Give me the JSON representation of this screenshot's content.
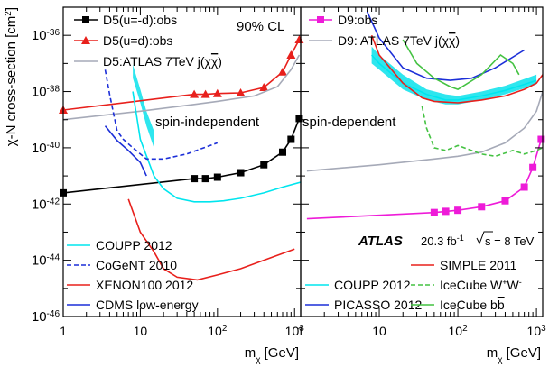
{
  "chart_data": [
    {
      "panel": "left",
      "type": "line",
      "log_x": true,
      "log_y": true,
      "xlim": [
        1,
        1200
      ],
      "ylim": [
        1e-46,
        1e-35
      ],
      "xlabel": "m",
      "xlabel_sub": "χ",
      "xlabel_unit": " [GeV]",
      "ylabel": "χ-N cross-section [cm",
      "ylabel_sup": "2",
      "ylabel_end": "]",
      "x_tick_labels": [
        "1",
        "10",
        "10",
        "10"
      ],
      "x_tick_sups": [
        "",
        "",
        "2",
        "3"
      ],
      "y_tick_labels": [
        "10",
        "10",
        "10",
        "10",
        "10",
        "10"
      ],
      "y_tick_sups": [
        "-46",
        "-44",
        "-42",
        "-40",
        "-38",
        "-36"
      ],
      "cl_label": "90% CL",
      "annotation": "spin-independent",
      "series": [
        {
          "name": "D5(u=-d):obs",
          "color": "#000000",
          "marker": "square",
          "dash": "",
          "x": [
            1,
            50,
            70,
            100,
            200,
            400,
            700,
            900,
            1150
          ],
          "y": [
            2.5e-42,
            8e-42,
            8e-42,
            9e-42,
            1.3e-41,
            2.5e-41,
            7e-41,
            2e-40,
            1.1e-39
          ]
        },
        {
          "name": "D5(u=d):obs",
          "color": "#e8201c",
          "marker": "triangle",
          "dash": "",
          "x": [
            1,
            50,
            70,
            100,
            200,
            400,
            700,
            900,
            1150
          ],
          "y": [
            2.2e-39,
            8e-39,
            8e-39,
            8.5e-39,
            9e-39,
            1.4e-38,
            5e-38,
            2e-37,
            7e-37
          ]
        },
        {
          "name_pre": "D5:ATLAS 7TeV j(χ",
          "name_bar": "χ",
          "name_post": ")",
          "color": "#a6aab8",
          "marker": "",
          "dash": "",
          "x": [
            1,
            10,
            50,
            100,
            300,
            600,
            900,
            1150
          ],
          "y": [
            1e-39,
            2e-39,
            3.5e-39,
            4.5e-39,
            7e-39,
            1.5e-38,
            6e-38,
            2e-37
          ]
        },
        {
          "name": "COUPP 2012",
          "color": "#00e5ee",
          "marker": "",
          "dash": "",
          "width": 1.6,
          "x": [
            8,
            10,
            15,
            20,
            30,
            50,
            80,
            120,
            200,
            400,
            700,
            1200
          ],
          "y": [
            1e-38,
            2e-40,
            1e-41,
            3.5e-42,
            1.6e-42,
            1.2e-42,
            1.2e-42,
            1.3e-42,
            1.6e-42,
            2.5e-42,
            4e-42,
            6e-42
          ]
        },
        {
          "name": "CoGeNT 2010",
          "color": "#1c2fd8",
          "marker": "",
          "dash": "5,3",
          "x": [
            3.5,
            4,
            5,
            6,
            8,
            12,
            20,
            40,
            100
          ],
          "y": [
            6e-38,
            8e-39,
            4e-40,
            2e-40,
            1e-40,
            4e-41,
            4e-41,
            6e-41,
            1.5e-40
          ]
        },
        {
          "name": "XENON100 2012",
          "color": "#e8201c",
          "marker": "",
          "dash": "",
          "x": [
            7,
            10,
            15,
            20,
            30,
            55,
            100,
            200,
            400,
            1000
          ],
          "y": [
            1.5e-42,
            1e-43,
            2e-44,
            5e-45,
            2.5e-45,
            2e-45,
            3e-45,
            5e-45,
            1e-44,
            2.5e-44
          ]
        },
        {
          "name": "CDMS low-energy",
          "color": "#1c2fd8",
          "marker": "",
          "dash": "",
          "x": [
            3.5,
            5,
            7,
            10,
            12
          ],
          "y": [
            6e-40,
            1.8e-40,
            8e-41,
            3e-41,
            1e-41
          ]
        }
      ],
      "band": {
        "color": "#2ee6ee",
        "x": [
          8,
          10,
          12,
          15
        ],
        "upper": [
          9e-38,
          1.2e-38,
          2e-39,
          4e-40
        ],
        "lower": [
          3e-38,
          4e-39,
          6e-40,
          1e-40
        ]
      }
    },
    {
      "panel": "right",
      "type": "line",
      "log_x": true,
      "log_y": true,
      "xlim": [
        1,
        1200
      ],
      "ylim": [
        1e-46,
        1e-35
      ],
      "xlabel": "m",
      "xlabel_sub": "χ",
      "xlabel_unit": " [GeV]",
      "x_tick_labels": [
        "1",
        "10",
        "10",
        "10"
      ],
      "x_tick_sups": [
        "",
        "",
        "2",
        "3"
      ],
      "annotation": "spin-dependent",
      "atlas_label": "ATLAS",
      "lumi_label": "20.3 fb",
      "lumi_sup": "-1",
      "energy_label": "s = 8 TeV",
      "series": [
        {
          "name": "D9:obs",
          "color": "#ee1bd8",
          "marker": "square",
          "dash": "",
          "x": [
            1.2,
            50,
            70,
            100,
            200,
            400,
            700,
            900,
            1150
          ],
          "y": [
            3e-43,
            5e-43,
            5.5e-43,
            6e-43,
            8e-43,
            1.3e-42,
            4e-42,
            2e-41,
            2e-40
          ]
        },
        {
          "name_pre": "D9: ATLAS 7TeV j(χ",
          "name_bar": "χ",
          "name_post": ")",
          "color": "#a6aab8",
          "marker": "",
          "dash": "",
          "x": [
            1.2,
            10,
            50,
            100,
            200,
            400,
            700,
            1000,
            1200
          ],
          "y": [
            1.5e-41,
            2.5e-41,
            4e-41,
            5e-41,
            7e-41,
            1.5e-40,
            5e-40,
            2e-39,
            1e-38
          ]
        },
        {
          "name": "COUPP 2012",
          "color": "#00e5ee",
          "marker": "",
          "dash": "",
          "x": [
            8,
            10,
            20,
            40,
            70,
            100,
            200,
            400,
            700,
            1000
          ],
          "y": [
            2e-37,
            1e-37,
            2e-38,
            8e-39,
            5e-39,
            5e-39,
            7e-39,
            1.1e-38,
            1.8e-38,
            2.5e-38
          ]
        },
        {
          "name": "PICASSO 2012",
          "color": "#1c2fd8",
          "marker": "",
          "dash": "",
          "x": [
            7,
            10,
            20,
            40,
            80,
            150,
            300,
            700
          ],
          "y": [
            7e-36,
            8e-37,
            7e-38,
            3e-38,
            2.5e-38,
            3e-38,
            7e-38,
            3e-37
          ]
        },
        {
          "name": "SIMPLE 2011",
          "color": "#e8201c",
          "marker": "",
          "dash": "",
          "x": [
            8,
            10,
            20,
            35,
            50,
            100,
            200,
            400,
            700,
            1000,
            1200
          ],
          "y": [
            1e-36,
            2e-37,
            2e-38,
            6e-39,
            4.5e-39,
            4e-39,
            5e-39,
            7e-39,
            1.2e-38,
            2e-38,
            4e-38
          ]
        },
        {
          "name_pre": "IceCube W",
          "name_sup": "+",
          "name_mid": "W",
          "name_sup2": "-",
          "color": "#44c242",
          "marker": "",
          "dash": "5,3",
          "x": [
            35,
            40,
            50,
            70,
            100,
            200,
            300,
            500,
            700,
            1000,
            1200
          ],
          "y": [
            3e-39,
            5e-40,
            1e-40,
            8e-41,
            1.2e-40,
            6e-41,
            5e-41,
            8e-41,
            6e-41,
            8e-41,
            1e-40
          ]
        },
        {
          "name_pre": "IceCube b",
          "name_bar": "b",
          "name_post": "",
          "color": "#44c242",
          "marker": "",
          "dash": "",
          "x": [
            20,
            30,
            50,
            80,
            100,
            200,
            350,
            500,
            600
          ],
          "y": [
            7e-37,
            1e-37,
            3e-38,
            1.5e-38,
            1.2e-38,
            4e-38,
            2e-37,
            1e-37,
            4e-38
          ]
        }
      ],
      "band": {
        "color": "#2ee6ee",
        "x": [
          8,
          10,
          20,
          40,
          70,
          100,
          200,
          400,
          700,
          1000
        ],
        "upper": [
          4e-37,
          2e-37,
          4e-38,
          1.2e-38,
          8e-39,
          7e-39,
          1e-38,
          1.6e-38,
          2.8e-38,
          4e-38
        ],
        "lower": [
          1e-37,
          6e-38,
          1.2e-38,
          5e-39,
          3.5e-39,
          3.5e-39,
          5e-39,
          8e-39,
          1.3e-38,
          1.8e-38
        ]
      }
    }
  ]
}
